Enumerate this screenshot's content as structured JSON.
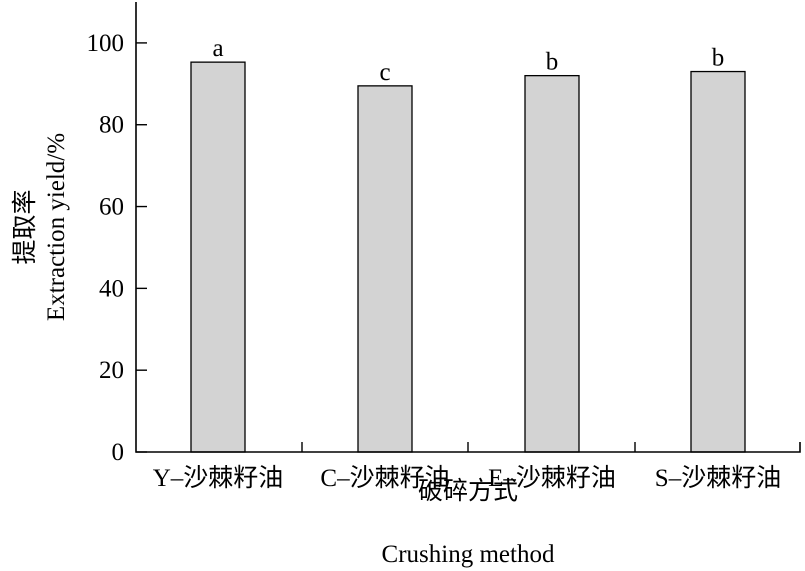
{
  "chart_data": {
    "type": "bar",
    "categories": [
      "Y–沙棘籽油",
      "C–沙棘籽油",
      "E–沙棘籽油",
      "S–沙棘籽油"
    ],
    "values": [
      95.3,
      89.5,
      92.0,
      93.0
    ],
    "significance_letters": [
      "a",
      "c",
      "b",
      "b"
    ],
    "xlabel": "破碎方式",
    "xlabel_en": "Crushing method",
    "ylabel": "提取率",
    "ylabel_en": "Extraction yield/%",
    "ylim": [
      0,
      110
    ],
    "yticks": [
      0,
      20,
      40,
      60,
      80,
      100
    ],
    "ytick_labels": [
      "0",
      "20",
      "40",
      "60",
      "80",
      "100"
    ],
    "bar_color": "#d3d3d3",
    "grid": false,
    "legend": "none"
  }
}
